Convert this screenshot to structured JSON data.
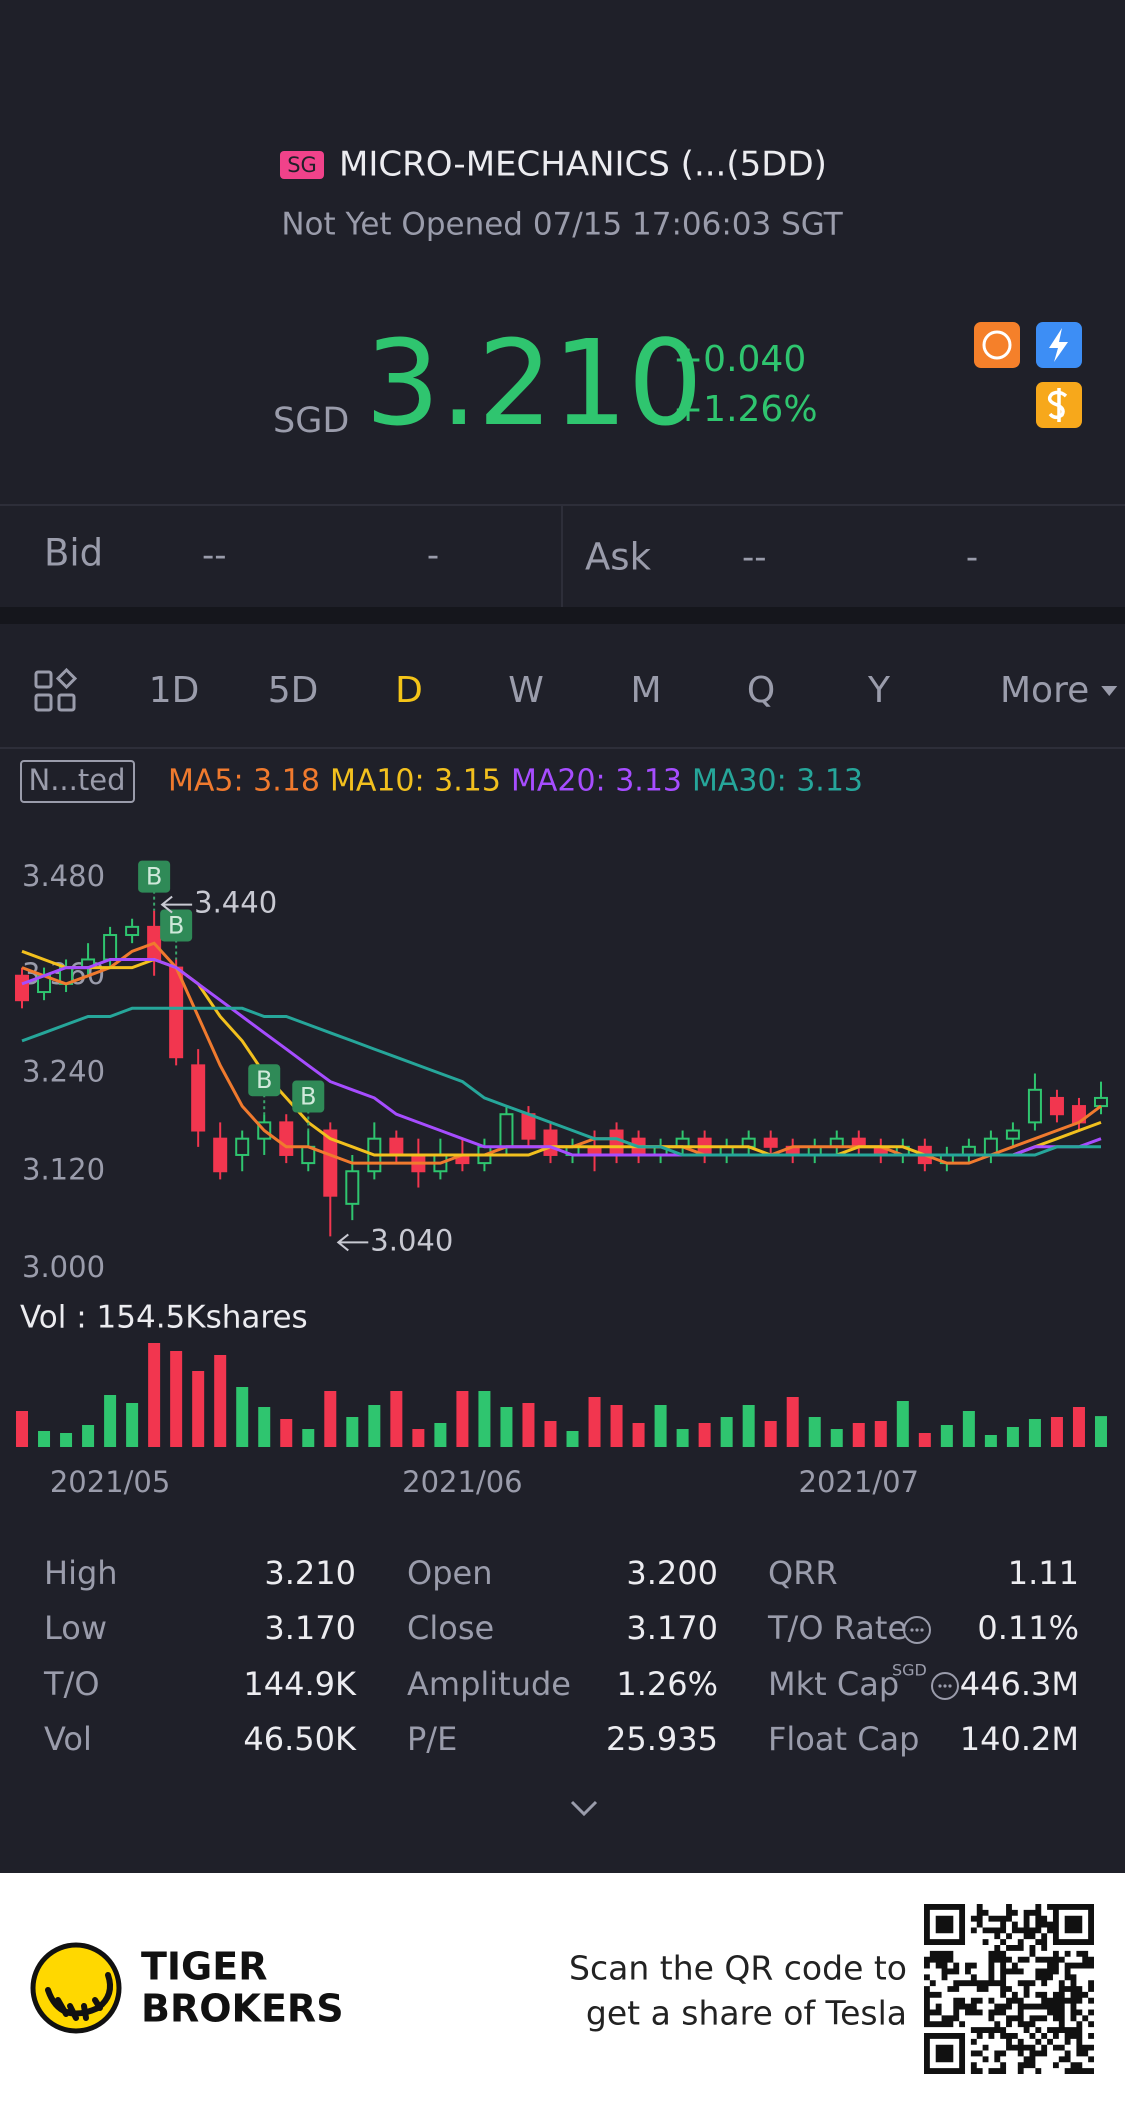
{
  "header": {
    "market": "SG",
    "name": "MICRO-MECHANICS (...(5DD)",
    "status": "Not Yet Opened 07/15 17:06:03 SGT",
    "currency": "SGD",
    "price": "3.210",
    "change": "+0.040",
    "change_pct": "+1.26%"
  },
  "quote": {
    "bid_label": "Bid",
    "bid": "--",
    "bid_size": "-",
    "ask_label": "Ask",
    "ask": "--",
    "ask_size": "-"
  },
  "tabs": [
    "1D",
    "5D",
    "D",
    "W",
    "M",
    "Q",
    "Y",
    "More"
  ],
  "selected_tab": "D",
  "ma_legend": {
    "badge": "N...ted",
    "items": [
      {
        "label": "MA5: 3.18",
        "color": "#f07a2e"
      },
      {
        "label": "MA10: 3.15",
        "color": "#f2c01e"
      },
      {
        "label": "MA20: 3.13",
        "color": "#a64dff"
      },
      {
        "label": "MA30: 3.13",
        "color": "#26a69a"
      }
    ]
  },
  "chart": {
    "type": "candlestick",
    "ylim": [
      3.0,
      3.48
    ],
    "yticks": [
      {
        "value": 3.48,
        "label": "3.480"
      },
      {
        "value": 3.36,
        "label": "3.360"
      },
      {
        "value": 3.24,
        "label": "3.240"
      },
      {
        "value": 3.12,
        "label": "3.120"
      },
      {
        "value": 3.0,
        "label": "3.000"
      }
    ],
    "up_color": "#2fc56f",
    "down_color": "#f2364f",
    "categories": [
      null,
      null,
      null,
      null,
      "2021/05",
      null,
      null,
      null,
      null,
      null,
      null,
      null,
      null,
      null,
      null,
      null,
      null,
      null,
      null,
      null,
      "2021/06",
      null,
      null,
      null,
      null,
      null,
      null,
      null,
      null,
      null,
      null,
      null,
      null,
      null,
      null,
      null,
      null,
      null,
      "2021/07",
      null,
      null,
      null,
      null,
      null,
      null,
      null,
      null,
      null,
      null,
      null
    ],
    "open": [
      3.36,
      3.34,
      3.35,
      3.37,
      3.38,
      3.41,
      3.42,
      3.37,
      3.25,
      3.16,
      3.14,
      3.16,
      3.18,
      3.13,
      3.17,
      3.08,
      3.12,
      3.16,
      3.14,
      3.12,
      3.14,
      3.13,
      3.15,
      3.19,
      3.17,
      3.14,
      3.15,
      3.17,
      3.16,
      3.14,
      3.15,
      3.16,
      3.14,
      3.15,
      3.16,
      3.15,
      3.14,
      3.15,
      3.16,
      3.15,
      3.14,
      3.15,
      3.13,
      3.14,
      3.14,
      3.16,
      3.18,
      3.21,
      3.2,
      3.2
    ],
    "close": [
      3.33,
      3.36,
      3.37,
      3.38,
      3.41,
      3.42,
      3.38,
      3.26,
      3.17,
      3.12,
      3.16,
      3.18,
      3.14,
      3.15,
      3.09,
      3.12,
      3.16,
      3.14,
      3.12,
      3.14,
      3.13,
      3.15,
      3.19,
      3.16,
      3.14,
      3.15,
      3.14,
      3.14,
      3.14,
      3.15,
      3.16,
      3.14,
      3.15,
      3.16,
      3.15,
      3.14,
      3.15,
      3.16,
      3.15,
      3.14,
      3.15,
      3.13,
      3.14,
      3.15,
      3.16,
      3.17,
      3.22,
      3.19,
      3.18,
      3.21
    ],
    "high": [
      3.37,
      3.37,
      3.38,
      3.4,
      3.42,
      3.43,
      3.44,
      3.38,
      3.27,
      3.18,
      3.17,
      3.19,
      3.19,
      3.17,
      3.18,
      3.14,
      3.18,
      3.17,
      3.16,
      3.16,
      3.16,
      3.16,
      3.2,
      3.2,
      3.18,
      3.16,
      3.17,
      3.18,
      3.17,
      3.16,
      3.17,
      3.17,
      3.16,
      3.17,
      3.17,
      3.16,
      3.16,
      3.17,
      3.17,
      3.16,
      3.16,
      3.16,
      3.15,
      3.16,
      3.17,
      3.18,
      3.24,
      3.22,
      3.21,
      3.23
    ],
    "low": [
      3.32,
      3.33,
      3.34,
      3.36,
      3.37,
      3.4,
      3.36,
      3.25,
      3.15,
      3.11,
      3.12,
      3.14,
      3.13,
      3.12,
      3.04,
      3.06,
      3.11,
      3.13,
      3.1,
      3.11,
      3.12,
      3.12,
      3.14,
      3.15,
      3.13,
      3.13,
      3.12,
      3.13,
      3.13,
      3.13,
      3.14,
      3.13,
      3.13,
      3.14,
      3.14,
      3.13,
      3.13,
      3.14,
      3.14,
      3.13,
      3.13,
      3.12,
      3.12,
      3.13,
      3.13,
      3.15,
      3.17,
      3.18,
      3.17,
      3.19
    ],
    "ma": [
      {
        "name": "MA5",
        "color": "#f07a2e",
        "values": [
          3.37,
          3.36,
          3.35,
          3.36,
          3.37,
          3.39,
          3.4,
          3.37,
          3.31,
          3.25,
          3.2,
          3.17,
          3.15,
          3.15,
          3.14,
          3.13,
          3.13,
          3.13,
          3.13,
          3.13,
          3.14,
          3.14,
          3.15,
          3.15,
          3.15,
          3.15,
          3.16,
          3.16,
          3.15,
          3.15,
          3.15,
          3.14,
          3.14,
          3.14,
          3.14,
          3.15,
          3.15,
          3.15,
          3.15,
          3.15,
          3.14,
          3.14,
          3.13,
          3.13,
          3.14,
          3.15,
          3.16,
          3.17,
          3.18,
          3.2
        ]
      },
      {
        "name": "MA10",
        "color": "#f2c01e",
        "values": [
          3.39,
          3.38,
          3.37,
          3.37,
          3.37,
          3.37,
          3.38,
          3.37,
          3.35,
          3.31,
          3.28,
          3.24,
          3.21,
          3.18,
          3.16,
          3.15,
          3.14,
          3.14,
          3.14,
          3.14,
          3.14,
          3.14,
          3.14,
          3.14,
          3.15,
          3.15,
          3.15,
          3.15,
          3.15,
          3.15,
          3.15,
          3.15,
          3.15,
          3.15,
          3.14,
          3.14,
          3.14,
          3.14,
          3.15,
          3.15,
          3.15,
          3.14,
          3.14,
          3.14,
          3.14,
          3.14,
          3.15,
          3.16,
          3.17,
          3.18
        ]
      },
      {
        "name": "MA20",
        "color": "#a64dff",
        "values": [
          3.35,
          3.36,
          3.37,
          3.37,
          3.38,
          3.38,
          3.38,
          3.37,
          3.35,
          3.33,
          3.31,
          3.29,
          3.27,
          3.25,
          3.23,
          3.22,
          3.21,
          3.19,
          3.18,
          3.17,
          3.16,
          3.15,
          3.15,
          3.15,
          3.15,
          3.14,
          3.14,
          3.14,
          3.14,
          3.14,
          3.14,
          3.14,
          3.14,
          3.14,
          3.14,
          3.14,
          3.14,
          3.14,
          3.14,
          3.14,
          3.14,
          3.14,
          3.14,
          3.14,
          3.14,
          3.14,
          3.15,
          3.15,
          3.15,
          3.16
        ]
      },
      {
        "name": "MA30",
        "color": "#26a69a",
        "values": [
          3.28,
          3.29,
          3.3,
          3.31,
          3.31,
          3.32,
          3.32,
          3.32,
          3.32,
          3.32,
          3.32,
          3.31,
          3.31,
          3.3,
          3.29,
          3.28,
          3.27,
          3.26,
          3.25,
          3.24,
          3.23,
          3.21,
          3.2,
          3.19,
          3.18,
          3.17,
          3.16,
          3.16,
          3.15,
          3.15,
          3.14,
          3.14,
          3.14,
          3.14,
          3.14,
          3.14,
          3.14,
          3.14,
          3.14,
          3.14,
          3.14,
          3.14,
          3.14,
          3.14,
          3.14,
          3.14,
          3.14,
          3.15,
          3.15,
          3.15
        ]
      }
    ],
    "markers": [
      {
        "label": "B",
        "candle": 6
      },
      {
        "label": "B",
        "candle": 7
      },
      {
        "label": "B",
        "candle": 11
      },
      {
        "label": "B",
        "candle": 13
      }
    ],
    "high_note": {
      "value": 3.44,
      "label": "3.440",
      "candle": 6
    },
    "low_note": {
      "value": 3.04,
      "label": "3.040",
      "candle": 14
    },
    "volume_label": "Vol  : 154.5Kshares",
    "volume": [
      180,
      80,
      70,
      110,
      260,
      220,
      520,
      480,
      380,
      460,
      300,
      200,
      140,
      90,
      280,
      150,
      210,
      280,
      90,
      120,
      280,
      280,
      200,
      220,
      130,
      80,
      250,
      210,
      120,
      210,
      90,
      120,
      150,
      210,
      130,
      250,
      150,
      90,
      120,
      130,
      230,
      70,
      110,
      180,
      60,
      100,
      140,
      150,
      200,
      154.5
    ]
  },
  "stats": {
    "rows": [
      [
        "High",
        "3.210",
        "Open",
        "3.200",
        "QRR",
        "1.11"
      ],
      [
        "Low",
        "3.170",
        "Close",
        "3.170",
        "T/O Rate",
        "0.11%"
      ],
      [
        "T/O",
        "144.9K",
        "Amplitude",
        "1.26%",
        "Mkt Cap",
        "446.3M"
      ],
      [
        "Vol",
        "46.50K",
        "P/E",
        "25.935",
        "Float Cap",
        "140.2M"
      ]
    ],
    "mkt_cap_unit": "SGD"
  },
  "footer": {
    "brand": [
      "TIGER",
      "BROKERS"
    ],
    "promo": [
      "Scan the QR code to",
      "get a share of Tesla"
    ]
  }
}
